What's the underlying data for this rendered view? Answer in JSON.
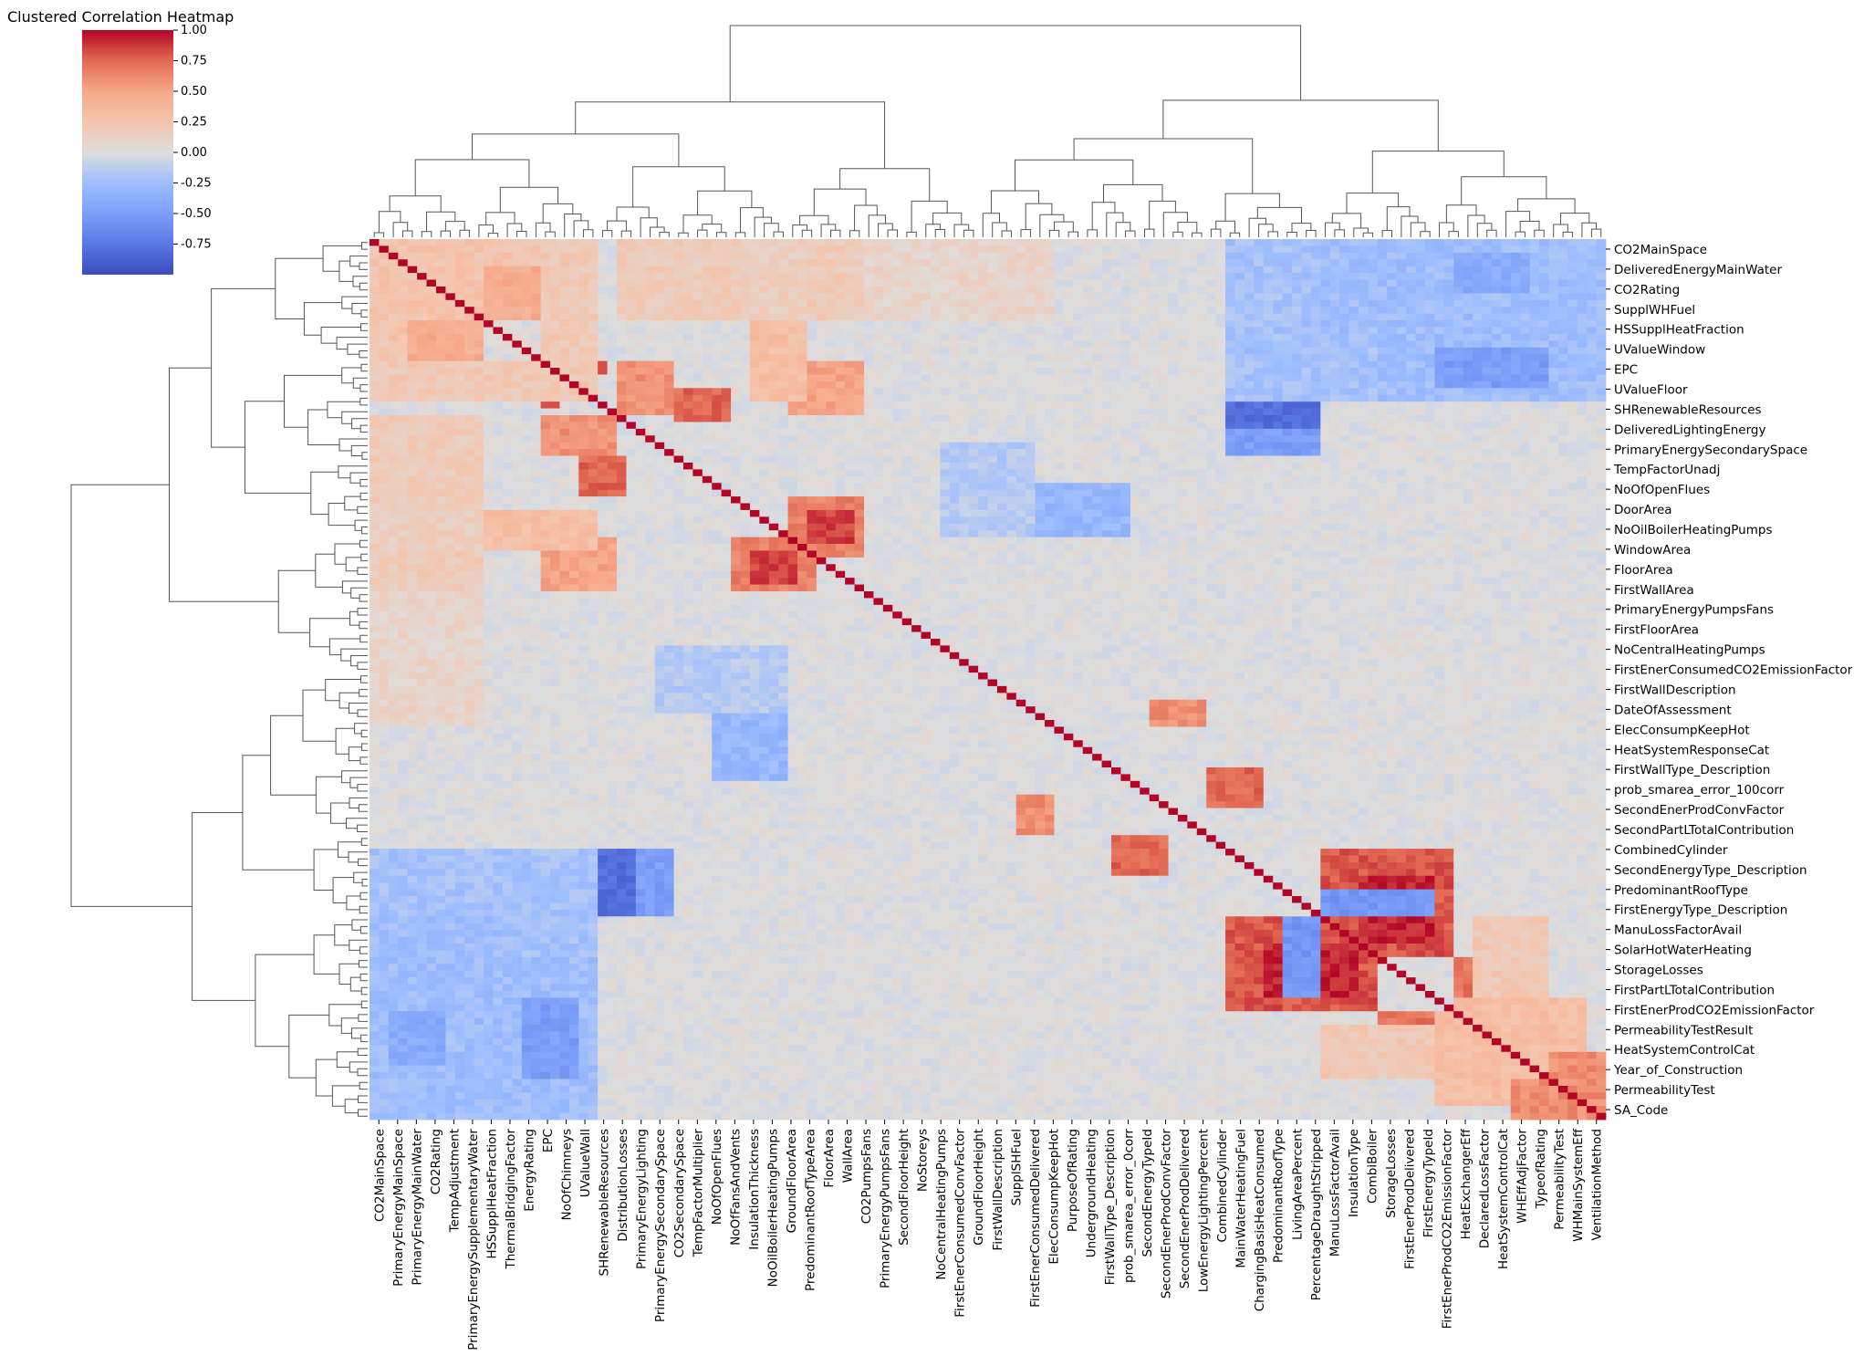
{
  "chart_data": {
    "type": "heatmap",
    "title": "Clustered Correlation Heatmap",
    "colormap": "coolwarm",
    "vmin": -1,
    "vmax": 1,
    "colorbar_ticks": [
      "1.00",
      "0.75",
      "0.50",
      "0.25",
      "0.00",
      "-0.25",
      "-0.50",
      "-0.75"
    ],
    "colorbar_tick_values": [
      1.0,
      0.75,
      0.5,
      0.25,
      0.0,
      -0.25,
      -0.5,
      -0.75
    ],
    "dendrograms": true,
    "colors": {
      "positive": "#b40426",
      "neutral": "#dddddd",
      "negative": "#3b4cc0"
    },
    "x_tick_labels": [
      "CO2MainSpace",
      "PrimaryEnergyMainSpace",
      "PrimaryEnergyMainWater",
      "CO2Rating",
      "TempAdjustment",
      "PrimaryEnergySupplementaryWater",
      "HSSupplHeatFraction",
      "ThermalBridgingFactor",
      "EnergyRating",
      "EPC",
      "NoOfChimneys",
      "UValueWall",
      "SHRenewableResources",
      "DistributionLosses",
      "PrimaryEnergyLighting",
      "PrimaryEnergySecondarySpace",
      "CO2SecondarySpace",
      "TempFactorMultiplier",
      "NoOfOpenFlues",
      "NoOfFansAndVents",
      "InsulationThickness",
      "NoOilBoilerHeatingPumps",
      "GroundFloorArea",
      "PredominantRoofTypeArea",
      "FloorArea",
      "WallArea",
      "CO2PumpsFans",
      "PrimaryEnergyPumpsFans",
      "SecondFloorHeight",
      "NoStoreys",
      "NoCentralHeatingPumps",
      "FirstEnerConsumedConvFactor",
      "GroundFloorHeight",
      "FirstWallDescription",
      "SupplSHFuel",
      "FirstEnerConsumedDelivered",
      "ElecConsumpKeepHot",
      "PurposeOfRating",
      "UndergroundHeating",
      "FirstWallType_Description",
      "prob_smarea_error_0corr",
      "SecondEnergyTypeId",
      "SecondEnerProdConvFactor",
      "SecondEnerProdDelivered",
      "LowEnergyLightingPercent",
      "CombinedCylinder",
      "MainWaterHeatingFuel",
      "ChargingBasisHeatConsumed",
      "PredominantRoofType",
      "LivingAreaPercent",
      "PercentageDraughtStripped",
      "ManuLossFactorAvail",
      "InsulationType",
      "CombiBoiler",
      "StorageLosses",
      "FirstEnerProdDelivered",
      "FirstEnergyTypeId",
      "FirstEnerProdCO2EmissionFactor",
      "HeatExchangerEff",
      "DeclaredLossFactor",
      "HeatSystemControlCat",
      "WHEffAdjFactor",
      "TypeofRating",
      "PermeabilityTest",
      "WHMainSystemEff",
      "VentilationMethod"
    ],
    "y_tick_labels": [
      "CO2MainSpace",
      "DeliveredEnergyMainWater",
      "CO2Rating",
      "SupplWHFuel",
      "HSSupplHeatFraction",
      "UValueWindow",
      "EPC",
      "UValueFloor",
      "SHRenewableResources",
      "DeliveredLightingEnergy",
      "PrimaryEnergySecondarySpace",
      "TempFactorUnadj",
      "NoOfOpenFlues",
      "DoorArea",
      "NoOilBoilerHeatingPumps",
      "WindowArea",
      "FloorArea",
      "FirstWallArea",
      "PrimaryEnergyPumpsFans",
      "FirstFloorArea",
      "NoCentralHeatingPumps",
      "FirstEnerConsumedCO2EmissionFactor",
      "FirstWallDescription",
      "DateOfAssessment",
      "ElecConsumpKeepHot",
      "HeatSystemResponseCat",
      "FirstWallType_Description",
      "prob_smarea_error_100corr",
      "SecondEnerProdConvFactor",
      "SecondPartLTotalContribution",
      "CombinedCylinder",
      "SecondEnergyType_Description",
      "PredominantRoofType",
      "FirstEnergyType_Description",
      "ManuLossFactorAvail",
      "SolarHotWaterHeating",
      "StorageLosses",
      "FirstPartLTotalContribution",
      "FirstEnerProdCO2EmissionFactor",
      "PermeabilityTestResult",
      "HeatSystemControlCat",
      "Year_of_Construction",
      "PermeabilityTest",
      "SA_Code"
    ],
    "blocks": [
      {
        "r0": 0,
        "r1": 6,
        "c0": 0,
        "c1": 6,
        "v": 0.7
      },
      {
        "r0": 1,
        "r1": 4,
        "c0": 2,
        "c1": 5,
        "v": 0.85
      },
      {
        "r0": 0,
        "r1": 12,
        "c0": 0,
        "c1": 24,
        "v": 0.25
      },
      {
        "r0": 0,
        "r1": 12,
        "c0": 26,
        "c1": 52,
        "v": 0.18
      },
      {
        "r0": 0,
        "r1": 12,
        "c0": 52,
        "c1": 72,
        "v": 0.1
      },
      {
        "r0": 4,
        "r1": 12,
        "c0": 12,
        "c1": 24,
        "v": 0.45
      },
      {
        "r0": 8,
        "r1": 12,
        "c0": 20,
        "c1": 24,
        "v": 0.55
      },
      {
        "r0": 16,
        "r1": 21,
        "c0": 20,
        "c1": 24,
        "v": 0.85
      },
      {
        "r0": 18,
        "r1": 20,
        "c0": 24,
        "c1": 25,
        "v": 0.8
      },
      {
        "r0": 18,
        "r1": 24,
        "c0": 0,
        "c1": 24,
        "v": 0.2
      },
      {
        "r0": 18,
        "r1": 26,
        "c0": 26,
        "c1": 32,
        "v": 0.6
      },
      {
        "r0": 18,
        "r1": 26,
        "c0": 44,
        "c1": 52,
        "v": 0.5
      },
      {
        "r0": 22,
        "r1": 27,
        "c0": 32,
        "c1": 38,
        "v": 0.75
      },
      {
        "r0": 38,
        "r1": 47,
        "c0": 44,
        "c1": 52,
        "v": 0.65
      },
      {
        "r0": 40,
        "r1": 45,
        "c0": 46,
        "c1": 51,
        "v": 0.85
      },
      {
        "r0": 40,
        "r1": 46,
        "c0": 12,
        "c1": 24,
        "v": 0.3
      },
      {
        "r0": 40,
        "r1": 46,
        "c0": 0,
        "c1": 12,
        "v": 0.15
      },
      {
        "r0": 68,
        "r1": 72,
        "c0": 82,
        "c1": 88,
        "v": 0.6
      },
      {
        "r0": 78,
        "r1": 84,
        "c0": 88,
        "c1": 94,
        "v": 0.75
      },
      {
        "r0": 90,
        "r1": 106,
        "c0": 100,
        "c1": 114,
        "v": 0.8
      },
      {
        "r0": 94,
        "r1": 104,
        "c0": 104,
        "c1": 112,
        "v": 0.92
      },
      {
        "r0": 106,
        "r1": 112,
        "c0": 114,
        "c1": 120,
        "v": 0.7
      },
      {
        "r0": 112,
        "r1": 128,
        "c0": 114,
        "c1": 128,
        "v": 0.3
      },
      {
        "r0": 120,
        "r1": 130,
        "c0": 124,
        "c1": 130,
        "v": 0.6
      },
      {
        "r0": 116,
        "r1": 124,
        "c0": 100,
        "c1": 112,
        "v": 0.2
      },
      {
        "r0": 14,
        "r1": 18,
        "c0": 100,
        "c1": 112,
        "v": -0.75
      },
      {
        "r0": 18,
        "r1": 22,
        "c0": 100,
        "c1": 112,
        "v": -0.55
      },
      {
        "r0": 90,
        "r1": 100,
        "c0": 24,
        "c1": 28,
        "v": -0.8
      },
      {
        "r0": 90,
        "r1": 100,
        "c0": 28,
        "c1": 32,
        "v": -0.5
      },
      {
        "r0": 90,
        "r1": 106,
        "c0": 0,
        "c1": 24,
        "v": -0.22
      },
      {
        "r0": 106,
        "r1": 130,
        "c0": 0,
        "c1": 24,
        "v": -0.25
      },
      {
        "r0": 112,
        "r1": 124,
        "c0": 16,
        "c1": 22,
        "v": -0.5
      },
      {
        "r0": 0,
        "r1": 14,
        "c0": 100,
        "c1": 130,
        "v": -0.25
      },
      {
        "r0": 2,
        "r1": 8,
        "c0": 114,
        "c1": 122,
        "v": -0.4
      },
      {
        "r0": 60,
        "r1": 70,
        "c0": 30,
        "c1": 44,
        "v": -0.15
      },
      {
        "r0": 70,
        "r1": 80,
        "c0": 36,
        "c1": 44,
        "v": -0.3
      },
      {
        "r0": 100,
        "r1": 112,
        "c0": 96,
        "c1": 100,
        "v": -0.55
      }
    ]
  }
}
